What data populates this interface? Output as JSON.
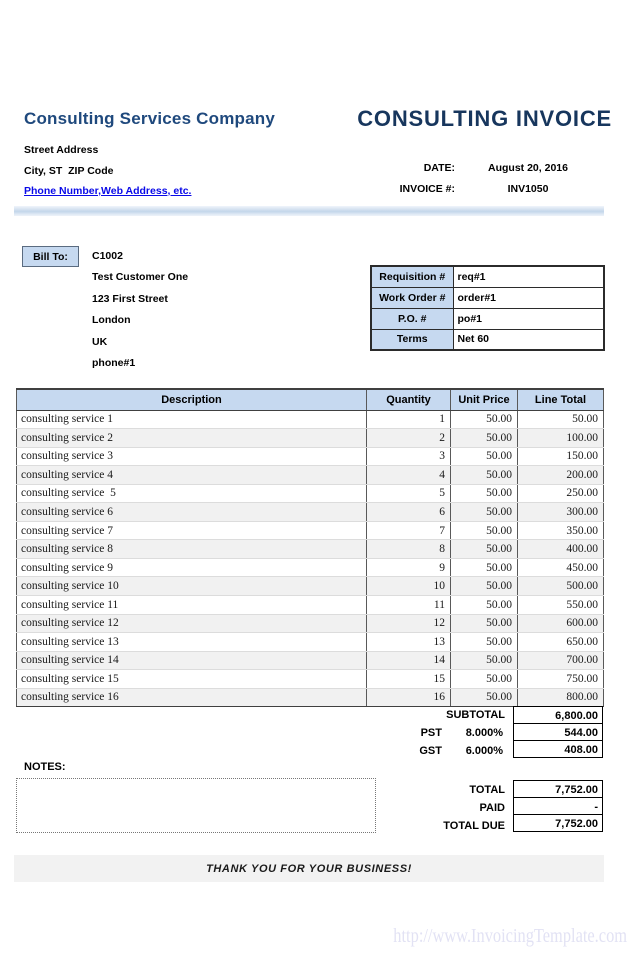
{
  "colors": {
    "brand_heading": "#1f497d",
    "invoice_title": "#17365d",
    "link_blue": "#0909e8",
    "panel_blue": "#c6d9f0",
    "alt_row_grey": "#f1f1f1",
    "footer_grey": "#f2f2f2",
    "watermark_lavender": "#e2e2f4"
  },
  "company": {
    "name": "Consulting Services Company",
    "address_line1": "Street Address",
    "address_line2": "City, ST  ZIP Code",
    "contact_link": "Phone Number,Web Address, etc."
  },
  "invoice": {
    "title": "CONSULTING INVOICE",
    "date_label": "DATE:",
    "date_value": "August 20, 2016",
    "number_label": "INVOICE #:",
    "number_value": "INV1050"
  },
  "bill_to": {
    "label": "Bill To:",
    "lines": [
      "C1002",
      "Test Customer One",
      "123 First Street",
      "London",
      "UK",
      "phone#1"
    ]
  },
  "order_info": {
    "rows": [
      {
        "label": "Requisition #",
        "value": "req#1"
      },
      {
        "label": "Work Order #",
        "value": "order#1"
      },
      {
        "label": "P.O. #",
        "value": "po#1"
      },
      {
        "label": "Terms",
        "value": "Net 60"
      }
    ]
  },
  "items_table": {
    "headers": {
      "description": "Description",
      "quantity": "Quantity",
      "unit_price": "Unit Price",
      "line_total": "Line Total"
    },
    "rows": [
      {
        "description": "consulting service 1",
        "quantity": "1",
        "unit_price": "50.00",
        "line_total": "50.00"
      },
      {
        "description": "consulting service 2",
        "quantity": "2",
        "unit_price": "50.00",
        "line_total": "100.00"
      },
      {
        "description": "consulting service 3",
        "quantity": "3",
        "unit_price": "50.00",
        "line_total": "150.00"
      },
      {
        "description": "consulting service 4",
        "quantity": "4",
        "unit_price": "50.00",
        "line_total": "200.00"
      },
      {
        "description": "consulting service  5",
        "quantity": "5",
        "unit_price": "50.00",
        "line_total": "250.00"
      },
      {
        "description": "consulting service 6",
        "quantity": "6",
        "unit_price": "50.00",
        "line_total": "300.00"
      },
      {
        "description": "consulting service 7",
        "quantity": "7",
        "unit_price": "50.00",
        "line_total": "350.00"
      },
      {
        "description": "consulting service 8",
        "quantity": "8",
        "unit_price": "50.00",
        "line_total": "400.00"
      },
      {
        "description": "consulting service 9",
        "quantity": "9",
        "unit_price": "50.00",
        "line_total": "450.00"
      },
      {
        "description": "consulting service 10",
        "quantity": "10",
        "unit_price": "50.00",
        "line_total": "500.00"
      },
      {
        "description": "consulting service 11",
        "quantity": "11",
        "unit_price": "50.00",
        "line_total": "550.00"
      },
      {
        "description": "consulting service 12",
        "quantity": "12",
        "unit_price": "50.00",
        "line_total": "600.00"
      },
      {
        "description": "consulting service 13",
        "quantity": "13",
        "unit_price": "50.00",
        "line_total": "650.00"
      },
      {
        "description": "consulting service 14",
        "quantity": "14",
        "unit_price": "50.00",
        "line_total": "700.00"
      },
      {
        "description": "consulting service 15",
        "quantity": "15",
        "unit_price": "50.00",
        "line_total": "750.00"
      },
      {
        "description": "consulting service 16",
        "quantity": "16",
        "unit_price": "50.00",
        "line_total": "800.00"
      }
    ]
  },
  "summary": {
    "subtotal": {
      "label": "SUBTOTAL",
      "value": "6,800.00"
    },
    "pst": {
      "label": "PST",
      "rate": "8.000%",
      "value": "544.00"
    },
    "gst": {
      "label": "GST",
      "rate": "6.000%",
      "value": "408.00"
    },
    "total": {
      "label": "TOTAL",
      "value": "7,752.00"
    },
    "paid": {
      "label": "PAID",
      "value": "-"
    },
    "total_due": {
      "label": "TOTAL DUE",
      "value": "7,752.00"
    }
  },
  "notes": {
    "label": "NOTES:"
  },
  "footer": {
    "thank_you": "THANK YOU FOR YOUR BUSINESS!",
    "watermark": "http://www.InvoicingTemplate.com"
  }
}
